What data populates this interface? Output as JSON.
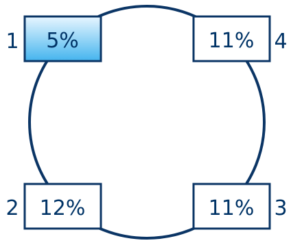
{
  "colors": {
    "stroke": "#0b3565",
    "text": "#003366",
    "highlight_top": "#e8f6ff",
    "highlight_bottom": "#44b4ee",
    "box_fill": "#ffffff"
  },
  "nodes": [
    {
      "number": "1",
      "value": "5%",
      "highlighted": true
    },
    {
      "number": "4",
      "value": "11%",
      "highlighted": false
    },
    {
      "number": "2",
      "value": "12%",
      "highlighted": false
    },
    {
      "number": "3",
      "value": "11%",
      "highlighted": false
    }
  ]
}
